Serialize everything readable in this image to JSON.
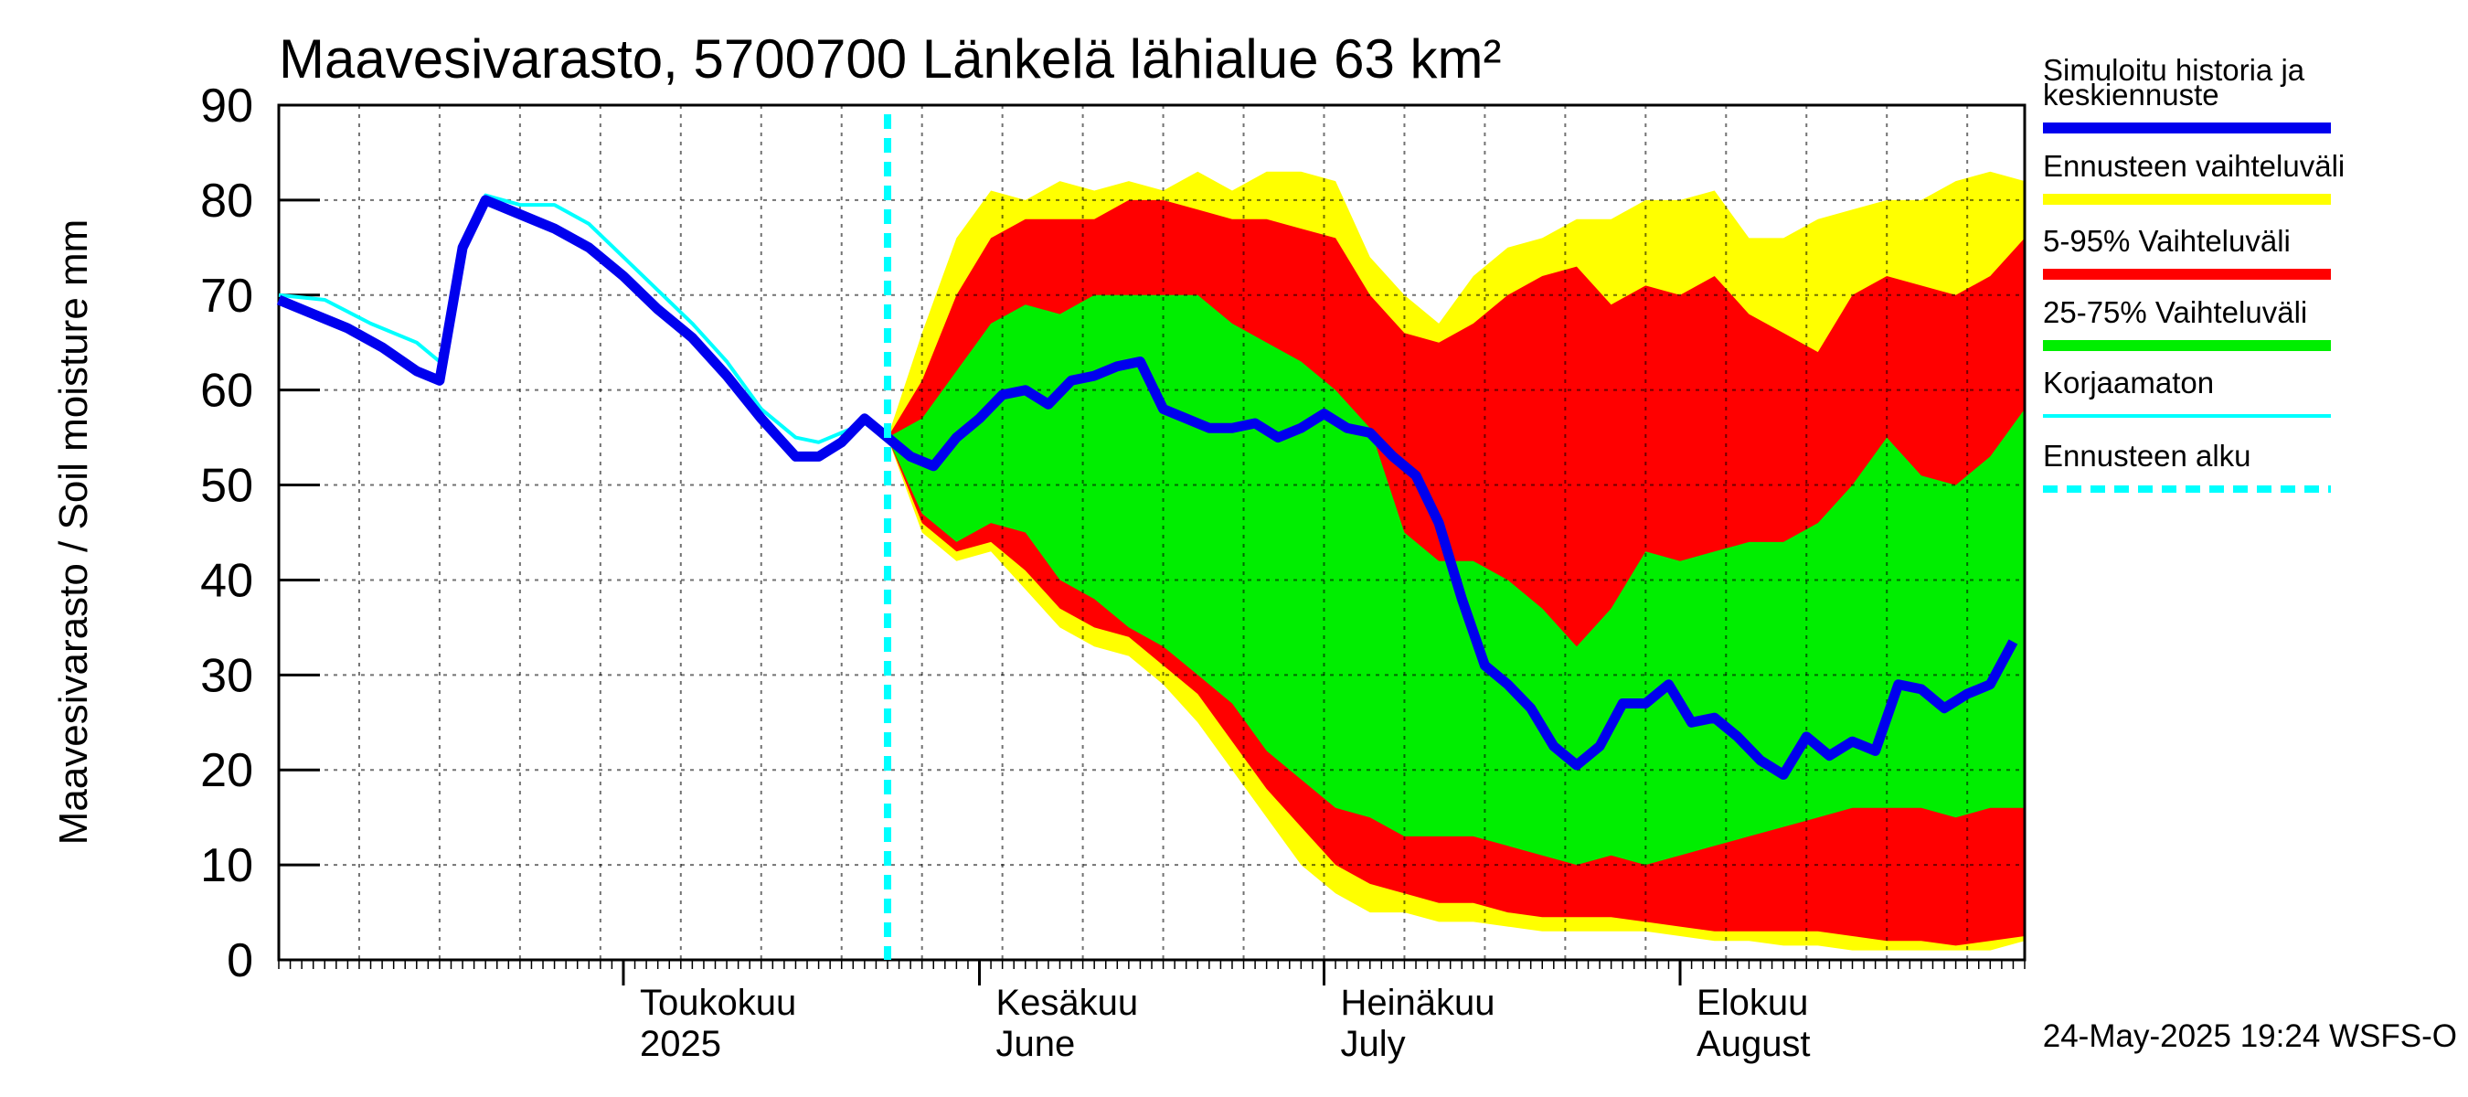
{
  "chart_data": {
    "type": "area",
    "title": "Maavesivarasto, 5700700 Länkelä lähialue 63 km²",
    "ylabel": "Maavesivarasto / Soil moisture   mm",
    "ylim": [
      0,
      90
    ],
    "yticks": [
      0,
      10,
      20,
      30,
      40,
      50,
      60,
      70,
      80,
      90
    ],
    "x_range": [
      "2025-04-01",
      "2025-08-31"
    ],
    "month_labels": [
      {
        "date": "2025-05-01",
        "line1": "Toukokuu",
        "line2": "2025"
      },
      {
        "date": "2025-06-01",
        "line1": "Kesäkuu",
        "line2": "June"
      },
      {
        "date": "2025-07-01",
        "line1": "Heinäkuu",
        "line2": "July"
      },
      {
        "date": "2025-08-01",
        "line1": "Elokuu",
        "line2": "August"
      }
    ],
    "forecast_start": "2025-05-24",
    "footer": "24-May-2025 19:24 WSFS-O",
    "colors": {
      "simulated": "#0000ee",
      "uncorrected": "#00ffff",
      "range": "#ffff00",
      "p5_95": "#ff0000",
      "p25_75": "#00ee00",
      "forecast_start": "#00ffff"
    },
    "legend": [
      {
        "label": "Simuloitu historia ja keskiennuste",
        "key": "simulated"
      },
      {
        "label": "Ennusteen vaihteluväli",
        "key": "range"
      },
      {
        "label": "5-95% Vaihteluväli",
        "key": "p5_95"
      },
      {
        "label": "25-75% Vaihteluväli",
        "key": "p25_75"
      },
      {
        "label": "Korjaamaton",
        "key": "uncorrected"
      },
      {
        "label": "Ennusteen alku",
        "key": "forecast_start"
      }
    ],
    "simulated": {
      "dates": [
        "2025-04-01",
        "2025-04-04",
        "2025-04-07",
        "2025-04-10",
        "2025-04-13",
        "2025-04-15",
        "2025-04-17",
        "2025-04-19",
        "2025-04-22",
        "2025-04-25",
        "2025-04-28",
        "2025-05-01",
        "2025-05-04",
        "2025-05-07",
        "2025-05-10",
        "2025-05-13",
        "2025-05-16",
        "2025-05-18",
        "2025-05-20",
        "2025-05-22",
        "2025-05-24",
        "2025-05-26",
        "2025-05-28",
        "2025-05-30",
        "2025-06-01",
        "2025-06-03",
        "2025-06-05",
        "2025-06-07",
        "2025-06-09",
        "2025-06-11",
        "2025-06-13",
        "2025-06-15",
        "2025-06-17",
        "2025-06-19",
        "2025-06-21",
        "2025-06-23",
        "2025-06-25",
        "2025-06-27",
        "2025-06-29",
        "2025-07-01",
        "2025-07-03",
        "2025-07-05",
        "2025-07-07",
        "2025-07-09",
        "2025-07-11",
        "2025-07-13",
        "2025-07-15",
        "2025-07-17",
        "2025-07-19",
        "2025-07-21",
        "2025-07-23",
        "2025-07-25",
        "2025-07-27",
        "2025-07-29",
        "2025-07-31",
        "2025-08-02",
        "2025-08-04",
        "2025-08-06",
        "2025-08-08",
        "2025-08-10",
        "2025-08-12",
        "2025-08-14",
        "2025-08-16",
        "2025-08-18",
        "2025-08-20",
        "2025-08-22",
        "2025-08-24",
        "2025-08-26",
        "2025-08-28",
        "2025-08-30"
      ],
      "values": [
        69.5,
        68,
        66.5,
        64.5,
        62,
        61,
        75,
        80,
        78.5,
        77,
        75,
        72,
        68.5,
        65.5,
        61.5,
        57,
        53,
        53,
        54.5,
        57,
        55,
        53,
        52,
        55,
        57,
        59.5,
        60,
        58.5,
        61,
        61.5,
        62.5,
        63,
        58,
        57,
        56,
        56,
        56.5,
        55,
        56,
        57.5,
        56,
        55.5,
        53,
        51,
        46,
        38,
        31,
        29,
        26.5,
        22.5,
        20.5,
        22.5,
        27,
        27,
        29,
        25,
        25.5,
        23.5,
        21,
        19.5,
        23.5,
        21.5,
        23,
        22,
        29,
        28.5,
        26.5,
        28,
        29,
        33.5
      ]
    },
    "uncorrected": {
      "dates": [
        "2025-04-01",
        "2025-04-05",
        "2025-04-09",
        "2025-04-13",
        "2025-04-15",
        "2025-04-17",
        "2025-04-19",
        "2025-04-22",
        "2025-04-25",
        "2025-04-28",
        "2025-05-01",
        "2025-05-04",
        "2025-05-07",
        "2025-05-10",
        "2025-05-13",
        "2025-05-16",
        "2025-05-18",
        "2025-05-20",
        "2025-05-22",
        "2025-05-24"
      ],
      "values": [
        70,
        69.5,
        67,
        65,
        63,
        75,
        80.5,
        79.5,
        79.5,
        77.5,
        74,
        70.5,
        67,
        63,
        58,
        55,
        54.5,
        55.5,
        56.5,
        55
      ]
    },
    "bands": {
      "dates": [
        "2025-05-24",
        "2025-05-27",
        "2025-05-30",
        "2025-06-02",
        "2025-06-05",
        "2025-06-08",
        "2025-06-11",
        "2025-06-14",
        "2025-06-17",
        "2025-06-20",
        "2025-06-23",
        "2025-06-26",
        "2025-06-29",
        "2025-07-02",
        "2025-07-05",
        "2025-07-08",
        "2025-07-11",
        "2025-07-14",
        "2025-07-17",
        "2025-07-20",
        "2025-07-23",
        "2025-07-26",
        "2025-07-29",
        "2025-08-01",
        "2025-08-04",
        "2025-08-07",
        "2025-08-10",
        "2025-08-13",
        "2025-08-16",
        "2025-08-19",
        "2025-08-22",
        "2025-08-25",
        "2025-08-28",
        "2025-08-31"
      ],
      "max": [
        55,
        66,
        76,
        81,
        80,
        82,
        81,
        82,
        81,
        83,
        81,
        83,
        83,
        82,
        74,
        70,
        67,
        72,
        75,
        76,
        78,
        78,
        80,
        80,
        81,
        76,
        76,
        78,
        79,
        80,
        80,
        82,
        83,
        82
      ],
      "p95": [
        55,
        61,
        70,
        76,
        78,
        78,
        78,
        80,
        80,
        79,
        78,
        78,
        77,
        76,
        70,
        66,
        65,
        67,
        70,
        72,
        73,
        69,
        71,
        70,
        72,
        68,
        66,
        64,
        70,
        72,
        71,
        70,
        72,
        76
      ],
      "p75": [
        55,
        57,
        62,
        67,
        69,
        68,
        70,
        70,
        70,
        70,
        67,
        65,
        63,
        60,
        56,
        45,
        42,
        42,
        40,
        37,
        33,
        37,
        43,
        42,
        43,
        44,
        44,
        46,
        50,
        55,
        51,
        50,
        53,
        58
      ],
      "p25": [
        55,
        47,
        44,
        46,
        45,
        40,
        38,
        35,
        33,
        30,
        27,
        22,
        19,
        16,
        15,
        13,
        13,
        13,
        12,
        11,
        10,
        11,
        10,
        11,
        12,
        13,
        14,
        15,
        16,
        16,
        16,
        15,
        16,
        16
      ],
      "p5": [
        55,
        46,
        43,
        44,
        41,
        37,
        35,
        34,
        31,
        28,
        23,
        18,
        14,
        10,
        8,
        7,
        6,
        6,
        5,
        4.5,
        4.5,
        4.5,
        4,
        3.5,
        3,
        3,
        3,
        3,
        2.5,
        2,
        2,
        1.5,
        2,
        2.5
      ],
      "min": [
        55,
        45,
        42,
        43,
        39,
        35,
        33,
        32,
        29,
        25,
        20,
        15,
        10,
        7,
        5,
        5,
        4,
        4,
        3.5,
        3,
        3,
        3,
        3,
        2.5,
        2,
        2,
        1.5,
        1.5,
        1,
        1,
        1,
        1,
        1,
        2
      ]
    }
  }
}
